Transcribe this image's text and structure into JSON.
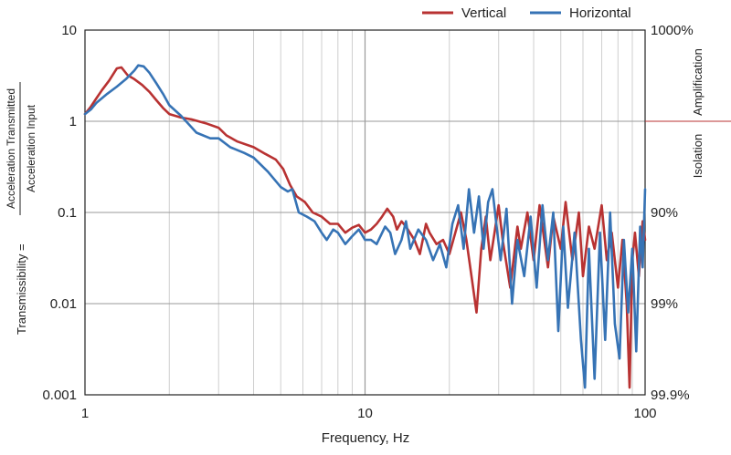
{
  "chart_data": {
    "type": "line",
    "xscale": "log",
    "yscale": "log",
    "xlim": [
      1,
      100
    ],
    "ylim": [
      0.001,
      10
    ],
    "xlabel": "Frequency, Hz",
    "ylabel_prefix": "Transmissibility =",
    "ylabel_numerator": "Acceleration Transmitted",
    "ylabel_denominator": "Acceleration Input",
    "x_ticks": [
      1,
      10,
      100
    ],
    "x_tick_labels": [
      "1",
      "10",
      "100"
    ],
    "y_ticks": [
      10,
      1,
      0.1,
      0.01,
      0.001
    ],
    "y_tick_labels": [
      "10",
      "1",
      "0.1",
      "0.01",
      "0.001"
    ],
    "right_axis": {
      "ticks": [
        10,
        0.1,
        0.01,
        0.001
      ],
      "labels": [
        "1000%",
        "90%",
        "99%",
        "99.9%"
      ],
      "region_above": "Amplification",
      "region_below": "Isolation",
      "divider_at": 1
    },
    "grid": true,
    "legend_position": "top-right",
    "series": [
      {
        "name": "Vertical",
        "color": "#b83232",
        "points": [
          [
            1.0,
            1.2
          ],
          [
            1.05,
            1.45
          ],
          [
            1.1,
            1.8
          ],
          [
            1.15,
            2.2
          ],
          [
            1.22,
            2.8
          ],
          [
            1.3,
            3.8
          ],
          [
            1.35,
            3.9
          ],
          [
            1.42,
            3.2
          ],
          [
            1.5,
            2.9
          ],
          [
            1.6,
            2.5
          ],
          [
            1.7,
            2.1
          ],
          [
            1.8,
            1.7
          ],
          [
            1.9,
            1.4
          ],
          [
            2.0,
            1.2
          ],
          [
            2.2,
            1.1
          ],
          [
            2.4,
            1.05
          ],
          [
            2.7,
            0.95
          ],
          [
            3.0,
            0.85
          ],
          [
            3.2,
            0.7
          ],
          [
            3.5,
            0.6
          ],
          [
            4.0,
            0.52
          ],
          [
            4.4,
            0.44
          ],
          [
            4.8,
            0.38
          ],
          [
            5.1,
            0.3
          ],
          [
            5.4,
            0.2
          ],
          [
            5.7,
            0.15
          ],
          [
            6.1,
            0.13
          ],
          [
            6.5,
            0.1
          ],
          [
            7.0,
            0.09
          ],
          [
            7.5,
            0.075
          ],
          [
            8.0,
            0.075
          ],
          [
            8.5,
            0.06
          ],
          [
            9.0,
            0.068
          ],
          [
            9.5,
            0.073
          ],
          [
            10.0,
            0.06
          ],
          [
            10.5,
            0.065
          ],
          [
            11.0,
            0.075
          ],
          [
            11.5,
            0.09
          ],
          [
            12.0,
            0.11
          ],
          [
            12.6,
            0.09
          ],
          [
            13.0,
            0.065
          ],
          [
            13.5,
            0.08
          ],
          [
            14.0,
            0.07
          ],
          [
            15.0,
            0.05
          ],
          [
            15.7,
            0.035
          ],
          [
            16.5,
            0.075
          ],
          [
            17.0,
            0.06
          ],
          [
            18.0,
            0.045
          ],
          [
            19.0,
            0.05
          ],
          [
            20.0,
            0.035
          ],
          [
            21.0,
            0.06
          ],
          [
            22.0,
            0.1
          ],
          [
            23.0,
            0.05
          ],
          [
            24.0,
            0.02
          ],
          [
            25.0,
            0.008
          ],
          [
            26.0,
            0.04
          ],
          [
            27.0,
            0.09
          ],
          [
            28.0,
            0.03
          ],
          [
            29.0,
            0.06
          ],
          [
            30.0,
            0.12
          ],
          [
            31.0,
            0.05
          ],
          [
            33.0,
            0.015
          ],
          [
            35.0,
            0.07
          ],
          [
            36.0,
            0.04
          ],
          [
            38.0,
            0.1
          ],
          [
            40.0,
            0.03
          ],
          [
            42.0,
            0.12
          ],
          [
            45.0,
            0.025
          ],
          [
            47.0,
            0.09
          ],
          [
            50.0,
            0.04
          ],
          [
            52.0,
            0.13
          ],
          [
            55.0,
            0.03
          ],
          [
            58.0,
            0.1
          ],
          [
            60.0,
            0.02
          ],
          [
            63.0,
            0.07
          ],
          [
            66.0,
            0.04
          ],
          [
            70.0,
            0.12
          ],
          [
            73.0,
            0.03
          ],
          [
            76.0,
            0.06
          ],
          [
            80.0,
            0.015
          ],
          [
            83.0,
            0.05
          ],
          [
            86.0,
            0.01
          ],
          [
            88.0,
            0.0012
          ],
          [
            90.0,
            0.03
          ],
          [
            92.0,
            0.06
          ],
          [
            95.0,
            0.02
          ],
          [
            98.0,
            0.08
          ],
          [
            100.0,
            0.05
          ]
        ]
      },
      {
        "name": "Horizontal",
        "color": "#3673b5",
        "points": [
          [
            1.0,
            1.2
          ],
          [
            1.05,
            1.35
          ],
          [
            1.1,
            1.6
          ],
          [
            1.2,
            2.0
          ],
          [
            1.3,
            2.4
          ],
          [
            1.4,
            2.9
          ],
          [
            1.5,
            3.6
          ],
          [
            1.55,
            4.1
          ],
          [
            1.62,
            4.0
          ],
          [
            1.7,
            3.4
          ],
          [
            1.8,
            2.6
          ],
          [
            1.9,
            2.0
          ],
          [
            2.0,
            1.5
          ],
          [
            2.2,
            1.15
          ],
          [
            2.5,
            0.75
          ],
          [
            2.8,
            0.65
          ],
          [
            3.0,
            0.65
          ],
          [
            3.3,
            0.52
          ],
          [
            3.7,
            0.45
          ],
          [
            4.0,
            0.4
          ],
          [
            4.5,
            0.28
          ],
          [
            5.0,
            0.19
          ],
          [
            5.3,
            0.17
          ],
          [
            5.5,
            0.18
          ],
          [
            5.8,
            0.1
          ],
          [
            6.2,
            0.09
          ],
          [
            6.6,
            0.08
          ],
          [
            7.0,
            0.06
          ],
          [
            7.3,
            0.05
          ],
          [
            7.7,
            0.065
          ],
          [
            8.0,
            0.06
          ],
          [
            8.5,
            0.045
          ],
          [
            9.0,
            0.055
          ],
          [
            9.5,
            0.065
          ],
          [
            10.0,
            0.05
          ],
          [
            10.5,
            0.05
          ],
          [
            11.0,
            0.045
          ],
          [
            11.8,
            0.07
          ],
          [
            12.3,
            0.06
          ],
          [
            12.8,
            0.035
          ],
          [
            13.5,
            0.05
          ],
          [
            14.0,
            0.08
          ],
          [
            14.5,
            0.04
          ],
          [
            15.5,
            0.065
          ],
          [
            16.5,
            0.05
          ],
          [
            17.5,
            0.03
          ],
          [
            18.5,
            0.045
          ],
          [
            19.5,
            0.025
          ],
          [
            20.5,
            0.075
          ],
          [
            21.5,
            0.12
          ],
          [
            22.5,
            0.04
          ],
          [
            23.5,
            0.18
          ],
          [
            24.5,
            0.06
          ],
          [
            25.5,
            0.15
          ],
          [
            26.5,
            0.04
          ],
          [
            27.5,
            0.13
          ],
          [
            28.5,
            0.18
          ],
          [
            29.5,
            0.07
          ],
          [
            30.5,
            0.03
          ],
          [
            32.0,
            0.11
          ],
          [
            33.5,
            0.01
          ],
          [
            35.0,
            0.05
          ],
          [
            37.0,
            0.02
          ],
          [
            39.0,
            0.09
          ],
          [
            41.0,
            0.015
          ],
          [
            43.0,
            0.12
          ],
          [
            45.0,
            0.03
          ],
          [
            47.0,
            0.1
          ],
          [
            49.0,
            0.005
          ],
          [
            51.0,
            0.07
          ],
          [
            53.0,
            0.009
          ],
          [
            56.0,
            0.06
          ],
          [
            59.0,
            0.004
          ],
          [
            61.0,
            0.0012
          ],
          [
            63.0,
            0.04
          ],
          [
            66.0,
            0.0015
          ],
          [
            69.0,
            0.06
          ],
          [
            72.0,
            0.004
          ],
          [
            75.0,
            0.1
          ],
          [
            78.0,
            0.006
          ],
          [
            81.0,
            0.0025
          ],
          [
            84.0,
            0.05
          ],
          [
            87.0,
            0.008
          ],
          [
            90.0,
            0.04
          ],
          [
            93.0,
            0.003
          ],
          [
            96.0,
            0.07
          ],
          [
            98.0,
            0.025
          ],
          [
            100.0,
            0.18
          ]
        ]
      }
    ]
  }
}
